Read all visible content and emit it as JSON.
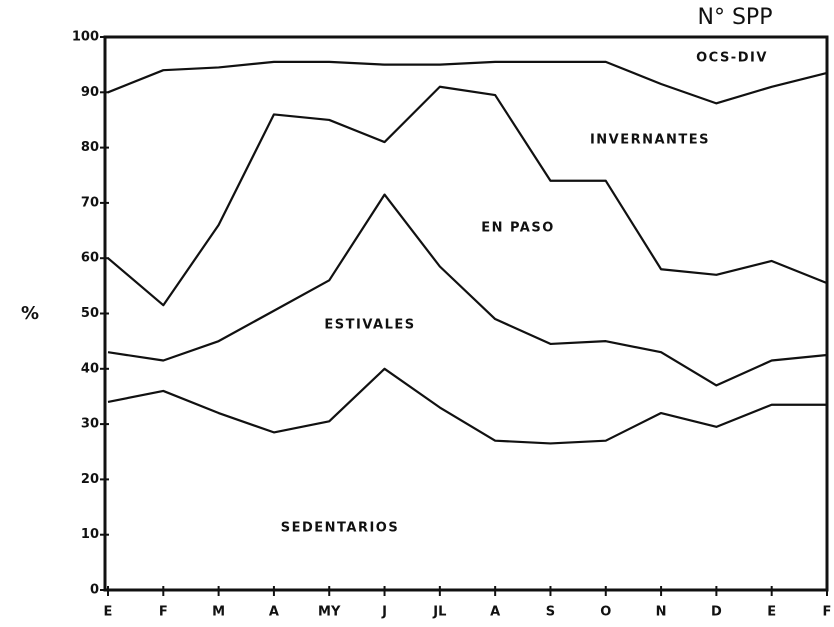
{
  "chart_data": {
    "type": "stacked-line",
    "title": "N° SPP",
    "ylabel": "%",
    "categories": [
      "E",
      "F",
      "M",
      "A",
      "MY",
      "J",
      "JL",
      "A",
      "S",
      "O",
      "N",
      "D",
      "E",
      "F"
    ],
    "series": [
      {
        "name": "SEDENTARIOS",
        "color": "#111111",
        "values": [
          34,
          36,
          32,
          28.5,
          30.5,
          40,
          33,
          27,
          26.5,
          27,
          32,
          29.5,
          33.5,
          33.5
        ]
      },
      {
        "name": "ESTIVALES",
        "color": "#111111",
        "values": [
          9,
          5.5,
          13,
          22,
          25.5,
          31.5,
          25.5,
          22,
          18,
          18,
          11,
          7.5,
          8,
          9
        ]
      },
      {
        "name": "EN PASO",
        "color": "#111111",
        "values": [
          17,
          10,
          21,
          35.5,
          29,
          9.5,
          32.5,
          40.5,
          29.5,
          29,
          15,
          20,
          18,
          13
        ]
      },
      {
        "name": "INVERNANTES",
        "color": "#111111",
        "values": [
          30,
          42.5,
          28.5,
          9.5,
          10.5,
          14,
          4,
          6,
          21.5,
          21.5,
          33.5,
          31,
          31.5,
          38
        ]
      },
      {
        "name": "OCS-DIV",
        "color": "#111111",
        "values": [
          10,
          6,
          5.5,
          4.5,
          4.5,
          5,
          5,
          4.5,
          4.5,
          4.5,
          8.5,
          12,
          9,
          6.5
        ]
      }
    ],
    "ylim": [
      0,
      100
    ],
    "yticks": [
      0,
      10,
      20,
      30,
      40,
      50,
      60,
      70,
      80,
      90,
      100
    ],
    "grid": false
  }
}
